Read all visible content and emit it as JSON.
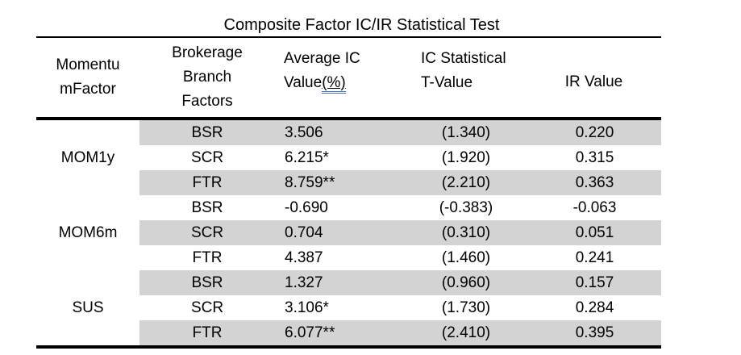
{
  "table": {
    "title": "Composite Factor IC/IR Statistical Test",
    "header": {
      "momentum_lines": [
        "Momentu",
        "mFactor"
      ],
      "brokerage_lines": [
        "Brokerage",
        "Branch",
        "Factors"
      ],
      "avg_ic_line1": "Average IC",
      "avg_ic_line2_text": "Value",
      "avg_ic_line2_pct": "(%)",
      "t_value_lines": [
        "IC Statistical",
        "T-Value"
      ],
      "ir_value": "IR Value"
    },
    "colors": {
      "row_shading": "#d3d3d3",
      "pct_underline_blue": "#4472c4",
      "rule_color": "#000000",
      "text": "#000000"
    },
    "rows": [
      {
        "factor": "",
        "branch": "BSR",
        "avg_ic": "3.506",
        "t_value": "(1.340)",
        "ir": "0.220"
      },
      {
        "factor": "MOM1y",
        "branch": "SCR",
        "avg_ic": "6.215*",
        "t_value": "(1.920)",
        "ir": "0.315"
      },
      {
        "factor": "",
        "branch": "FTR",
        "avg_ic": "8.759**",
        "t_value": "(2.210)",
        "ir": "0.363"
      },
      {
        "factor": "",
        "branch": "BSR",
        "avg_ic": "-0.690",
        "t_value": "(-0.383)",
        "ir": "-0.063"
      },
      {
        "factor": "MOM6m",
        "branch": "SCR",
        "avg_ic": "0.704",
        "t_value": "(0.310)",
        "ir": "0.051"
      },
      {
        "factor": "",
        "branch": "FTR",
        "avg_ic": "4.387",
        "t_value": "(1.460)",
        "ir": "0.241"
      },
      {
        "factor": "",
        "branch": "BSR",
        "avg_ic": "1.327",
        "t_value": "(0.960)",
        "ir": "0.157"
      },
      {
        "factor": "SUS",
        "branch": "SCR",
        "avg_ic": "3.106*",
        "t_value": "(1.730)",
        "ir": "0.284"
      },
      {
        "factor": "",
        "branch": "FTR",
        "avg_ic": "6.077**",
        "t_value": "(2.410)",
        "ir": "0.395"
      }
    ]
  }
}
